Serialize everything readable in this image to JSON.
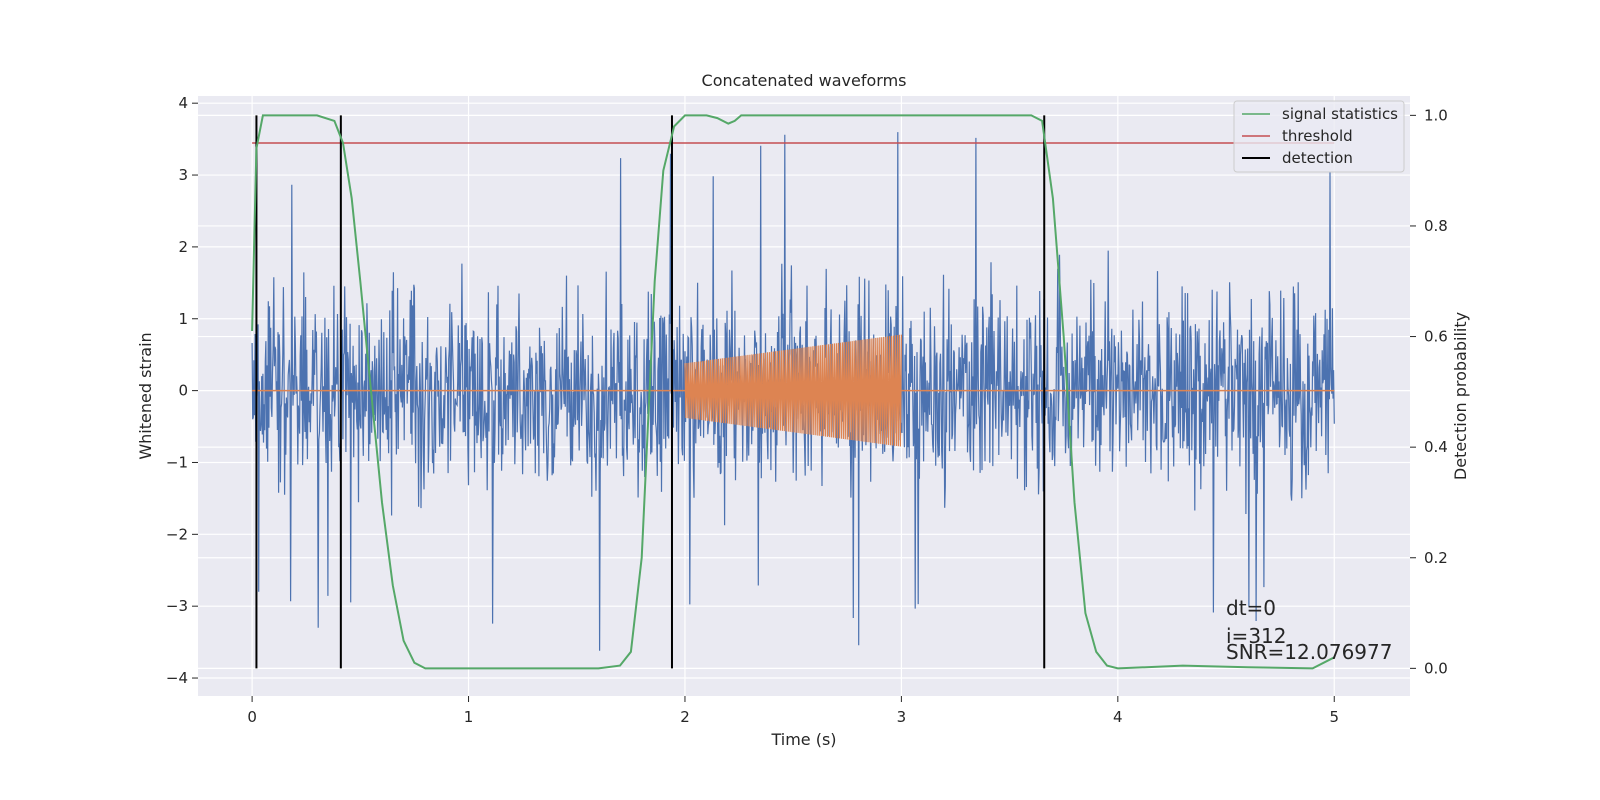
{
  "chart_data": {
    "type": "line",
    "title": "Concatenated waveforms",
    "xlabel": "Time (s)",
    "ylabel": "Whitened strain",
    "ylabel_right": "Detection probability",
    "xlim": [
      -0.25,
      5.35
    ],
    "ylim": [
      -4.25,
      4.1
    ],
    "ylim_right": [
      -0.05,
      1.035
    ],
    "xticks": [
      0,
      1,
      2,
      3,
      4,
      5
    ],
    "xtick_labels": [
      "0",
      "1",
      "2",
      "3",
      "4",
      "5"
    ],
    "yticks": [
      4,
      3,
      2,
      1,
      0,
      -1,
      -2,
      -3,
      -4
    ],
    "ytick_labels": [
      "4",
      "3",
      "2",
      "1",
      "0",
      "−1",
      "−2",
      "−3",
      "−4"
    ],
    "yticks_right": [
      1.0,
      0.8,
      0.6,
      0.4,
      0.2,
      0.0
    ],
    "ytick_labels_right": [
      "1.0",
      "0.8",
      "0.6",
      "0.4",
      "0.2",
      "0.0"
    ],
    "grid": true,
    "legend_position": "top-right",
    "colors": {
      "background": "#eaeaf2",
      "grid": "#ffffff",
      "noise": "#4c72b0",
      "injection": "#dd8452",
      "signal_statistics": "#55a868",
      "threshold": "#c44e52",
      "detection": "#000000"
    },
    "series": [
      {
        "name": "signal statistics",
        "axis": "right",
        "x": [
          0.0,
          0.02,
          0.05,
          0.1,
          0.2,
          0.3,
          0.38,
          0.42,
          0.46,
          0.5,
          0.55,
          0.6,
          0.65,
          0.7,
          0.75,
          0.8,
          1.0,
          1.3,
          1.6,
          1.7,
          1.75,
          1.8,
          1.83,
          1.86,
          1.9,
          1.95,
          2.0,
          2.1,
          2.15,
          2.2,
          2.23,
          2.26,
          2.3,
          2.5,
          3.0,
          3.5,
          3.6,
          3.65,
          3.7,
          3.75,
          3.8,
          3.85,
          3.9,
          3.95,
          4.0,
          4.3,
          4.6,
          4.9,
          5.0
        ],
        "y": [
          0.61,
          0.94,
          1.0,
          1.0,
          1.0,
          1.0,
          0.99,
          0.95,
          0.85,
          0.7,
          0.5,
          0.3,
          0.15,
          0.05,
          0.01,
          0.0,
          0.0,
          0.0,
          0.0,
          0.005,
          0.03,
          0.2,
          0.45,
          0.7,
          0.9,
          0.98,
          1.0,
          1.0,
          0.995,
          0.985,
          0.99,
          1.0,
          1.0,
          1.0,
          1.0,
          1.0,
          1.0,
          0.99,
          0.85,
          0.6,
          0.3,
          0.1,
          0.03,
          0.005,
          0.0,
          0.005,
          0.002,
          0.0,
          0.02
        ]
      },
      {
        "name": "threshold",
        "axis": "right",
        "x": [
          0.0,
          5.0
        ],
        "y": [
          0.95,
          0.95
        ]
      },
      {
        "name": "detection",
        "axis": "right",
        "x": [
          0.02,
          0.41,
          1.94,
          3.66
        ],
        "y_range": [
          0.0,
          1.0
        ]
      }
    ],
    "noise": {
      "axis": "left",
      "x_range": [
        0.0,
        5.0
      ],
      "amplitude_typical": 1.3,
      "max": 3.75,
      "min": -3.9
    },
    "injection": {
      "axis": "left",
      "x_range": [
        2.0,
        3.0
      ],
      "amplitude_start": 0.38,
      "amplitude_end": 0.78
    },
    "annotations": [
      "dt=0",
      "i=312",
      "SNR=12.076977"
    ]
  }
}
